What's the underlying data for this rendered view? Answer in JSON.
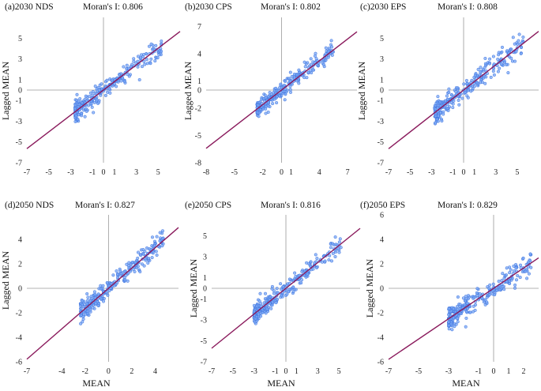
{
  "figure_xlabel": "MEAN",
  "colors": {
    "point_fill": "#7aa8f5",
    "point_stroke": "#3f73df",
    "fit_line": "#8a1a5c",
    "axis": "#9a9a9a"
  },
  "chart_data": [
    {
      "type": "scatter",
      "panel": "(a)2030 NDS",
      "stat": "Moran's I: 0.806",
      "xlabel": "",
      "ylabel": "Lagged MEAN",
      "xlim": [
        -7,
        7
      ],
      "ylim": [
        -7,
        7
      ],
      "xticks": [
        -7,
        -5,
        -3,
        -1,
        0,
        1,
        3,
        5
      ],
      "yticks": [
        -7,
        -5,
        -3,
        -1,
        0,
        1,
        3,
        5
      ],
      "slope": 0.806,
      "cloud": {
        "x_min": -2.6,
        "x_max": 5.3,
        "spread": 0.5,
        "n": 260
      }
    },
    {
      "type": "scatter",
      "panel": "(b)2030 CPS",
      "stat": "Moran's I: 0.802",
      "xlabel": "",
      "ylabel": "Lagged MEAN",
      "xlim": [
        -8,
        8
      ],
      "ylim": [
        -8,
        8
      ],
      "xticks": [
        -8,
        -5,
        -2,
        0,
        1,
        4,
        7
      ],
      "yticks": [
        -8,
        -5,
        -2,
        0,
        1,
        4,
        7
      ],
      "slope": 0.802,
      "cloud": {
        "x_min": -2.6,
        "x_max": 5.5,
        "spread": 0.55,
        "n": 260
      }
    },
    {
      "type": "scatter",
      "panel": "(c)2030 EPS",
      "stat": "Moran's I: 0.808",
      "xlabel": "",
      "ylabel": "Lagged MEAN",
      "xlim": [
        -7,
        7
      ],
      "ylim": [
        -7,
        7
      ],
      "xticks": [
        -7,
        -5,
        -3,
        -1,
        0,
        1,
        3,
        5
      ],
      "yticks": [
        -7,
        -5,
        -3,
        -1,
        0,
        1,
        3,
        5
      ],
      "slope": 0.808,
      "cloud": {
        "x_min": -2.7,
        "x_max": 5.6,
        "spread": 0.6,
        "n": 280
      }
    },
    {
      "type": "scatter",
      "panel": "(d)2050 NDS",
      "stat": "Moran's I: 0.827",
      "xlabel": "MEAN",
      "ylabel": "Lagged MEAN",
      "xlim": [
        -7,
        6
      ],
      "ylim": [
        -6,
        6
      ],
      "xticks": [
        -7,
        -4,
        -2,
        0,
        2,
        4
      ],
      "yticks": [
        -6,
        -4,
        -2,
        0,
        2,
        4
      ],
      "slope": 0.827,
      "cloud": {
        "x_min": -2.4,
        "x_max": 4.8,
        "spread": 0.45,
        "n": 270
      }
    },
    {
      "type": "scatter",
      "panel": "(e)2050 CPS",
      "stat": "Moran's I: 0.816",
      "xlabel": "MEAN",
      "ylabel": "Lagged MEAN",
      "xlim": [
        -7,
        7
      ],
      "ylim": [
        -7,
        7
      ],
      "xticks": [
        -7,
        -5,
        -3,
        -1,
        0,
        1,
        3,
        5
      ],
      "yticks": [
        -7,
        -5,
        -3,
        -1,
        0,
        1,
        3,
        5
      ],
      "slope": 0.816,
      "cloud": {
        "x_min": -3.0,
        "x_max": 5.3,
        "spread": 0.5,
        "n": 270
      }
    },
    {
      "type": "scatter",
      "panel": "(f)2050 EPS",
      "stat": "Moran's I: 0.829",
      "xlabel": "MEAN",
      "ylabel": "Lagged MEAN",
      "xlim": [
        -7,
        3
      ],
      "ylim": [
        -6,
        6
      ],
      "xticks": [
        -7,
        -5,
        -3,
        -1,
        0,
        1,
        2
      ],
      "yticks": [
        -6,
        -4,
        -2,
        0,
        2,
        4,
        6
      ],
      "slope": 0.829,
      "cloud": {
        "x_min": -3.0,
        "x_max": 2.5,
        "spread": 0.45,
        "n": 270
      }
    }
  ]
}
